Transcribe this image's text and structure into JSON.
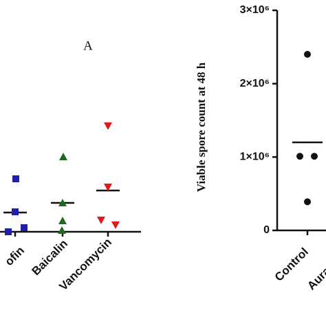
{
  "chart_data": [
    {
      "type": "scatter",
      "title": "A",
      "ylim": [
        0,
        200
      ],
      "groups": [
        {
          "category": "ofin",
          "color": "#1f1fa8",
          "marker": "square",
          "values": [
            77,
            29,
            6,
            0
          ],
          "median": 28
        },
        {
          "category": "Baicalin",
          "color": "#1e6b1e",
          "marker": "triangle",
          "values": [
            109,
            42,
            16,
            2
          ],
          "median": 42
        },
        {
          "category": "Vancomycin",
          "color": "#e8161b",
          "marker": "triangle-down",
          "values": [
            154,
            65,
            17,
            10
          ],
          "median": 60
        }
      ]
    },
    {
      "type": "scatter",
      "y_label": "Viable spore count at 48 h",
      "ylim": [
        0,
        3000000
      ],
      "yticks": [
        0,
        {
          "value": 1000000,
          "label": "1×10⁶"
        },
        {
          "value": 2000000,
          "label": "2×10⁶"
        },
        {
          "value": 3000000,
          "label": "3×10⁶"
        }
      ],
      "groups": [
        {
          "category": "Control",
          "color": "#111111",
          "marker": "circle",
          "values": [
            2400000,
            1010000,
            1010000,
            390000
          ],
          "median": 1200000
        },
        {
          "category": "Aura",
          "color": "#111111",
          "marker": "circle",
          "values": [],
          "median": null
        }
      ]
    }
  ]
}
